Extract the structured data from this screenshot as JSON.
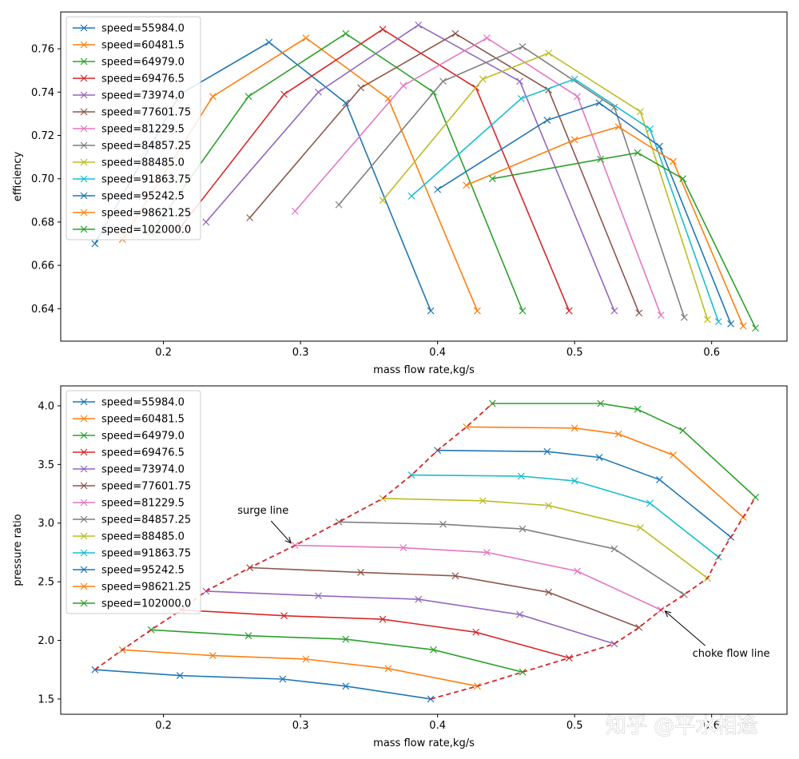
{
  "colors": [
    "#1f77b4",
    "#ff7f0e",
    "#2ca02c",
    "#d62728",
    "#9467bd",
    "#8c564b",
    "#e377c2",
    "#7f7f7f",
    "#bcbd22",
    "#17becf",
    "#1f77b4",
    "#ff7f0e",
    "#2ca02c"
  ],
  "boundary_color": "#d62728",
  "watermark": "知乎 @平水相逢",
  "chart_data": [
    {
      "type": "line",
      "xlabel": "mass flow rate,kg/s",
      "ylabel": "efficiency",
      "xlim": [
        0.125,
        0.655
      ],
      "ylim": [
        0.625,
        0.777
      ],
      "xticks": [
        0.2,
        0.3,
        0.4,
        0.5,
        0.6
      ],
      "yticks": [
        0.64,
        0.66,
        0.68,
        0.7,
        0.72,
        0.74,
        0.76
      ],
      "xtick_labels": [
        "0.2",
        "0.3",
        "0.4",
        "0.5",
        "0.6"
      ],
      "ytick_labels": [
        "0.64",
        "0.66",
        "0.68",
        "0.70",
        "0.72",
        "0.74",
        "0.76"
      ],
      "legend_loc": "upper-left",
      "series": [
        {
          "name": "speed=55984.0",
          "x": [
            0.15,
            0.212,
            0.277,
            0.333,
            0.395
          ],
          "y": [
            0.67,
            0.739,
            0.763,
            0.735,
            0.639
          ]
        },
        {
          "name": "speed=60481.5",
          "x": [
            0.17,
            0.236,
            0.304,
            0.364,
            0.429
          ],
          "y": [
            0.672,
            0.738,
            0.765,
            0.737,
            0.639
          ]
        },
        {
          "name": "speed=64979.0",
          "x": [
            0.191,
            0.262,
            0.333,
            0.397,
            0.462
          ],
          "y": [
            0.675,
            0.738,
            0.767,
            0.74,
            0.639
          ]
        },
        {
          "name": "speed=69476.5",
          "x": [
            0.213,
            0.288,
            0.36,
            0.428,
            0.496
          ],
          "y": [
            0.678,
            0.739,
            0.769,
            0.742,
            0.639
          ]
        },
        {
          "name": "speed=73974.0",
          "x": [
            0.231,
            0.313,
            0.386,
            0.46,
            0.529
          ],
          "y": [
            0.68,
            0.74,
            0.771,
            0.745,
            0.639
          ]
        },
        {
          "name": "speed=77601.75",
          "x": [
            0.263,
            0.344,
            0.413,
            0.481,
            0.547
          ],
          "y": [
            0.682,
            0.742,
            0.767,
            0.741,
            0.638
          ]
        },
        {
          "name": "speed=81229.5",
          "x": [
            0.296,
            0.375,
            0.436,
            0.502,
            0.563
          ],
          "y": [
            0.685,
            0.743,
            0.765,
            0.738,
            0.637
          ]
        },
        {
          "name": "speed=84857.25",
          "x": [
            0.328,
            0.404,
            0.462,
            0.529,
            0.58
          ],
          "y": [
            0.688,
            0.745,
            0.761,
            0.733,
            0.636
          ]
        },
        {
          "name": "speed=88485.0",
          "x": [
            0.36,
            0.433,
            0.481,
            0.548,
            0.597
          ],
          "y": [
            0.69,
            0.746,
            0.758,
            0.731,
            0.635
          ]
        },
        {
          "name": "speed=91863.75",
          "x": [
            0.381,
            0.461,
            0.5,
            0.555,
            0.605
          ],
          "y": [
            0.692,
            0.737,
            0.746,
            0.723,
            0.634
          ]
        },
        {
          "name": "speed=95242.5",
          "x": [
            0.4,
            0.48,
            0.518,
            0.562,
            0.614
          ],
          "y": [
            0.695,
            0.727,
            0.735,
            0.715,
            0.633
          ]
        },
        {
          "name": "speed=98621.25",
          "x": [
            0.421,
            0.5,
            0.532,
            0.572,
            0.623
          ],
          "y": [
            0.697,
            0.718,
            0.724,
            0.708,
            0.632
          ]
        },
        {
          "name": "speed=102000.0",
          "x": [
            0.44,
            0.519,
            0.546,
            0.579,
            0.632
          ],
          "y": [
            0.7,
            0.709,
            0.712,
            0.7,
            0.631
          ]
        }
      ]
    },
    {
      "type": "line",
      "xlabel": "mass flow rate,kg/s",
      "ylabel": "pressure ratio",
      "xlim": [
        0.125,
        0.655
      ],
      "ylim": [
        1.37,
        4.17
      ],
      "xticks": [
        0.2,
        0.3,
        0.4,
        0.5,
        0.6
      ],
      "yticks": [
        1.5,
        2.0,
        2.5,
        3.0,
        3.5,
        4.0
      ],
      "xtick_labels": [
        "0.2",
        "0.3",
        "0.4",
        "0.5",
        "0.6"
      ],
      "ytick_labels": [
        "1.5",
        "2.0",
        "2.5",
        "3.0",
        "3.5",
        "4.0"
      ],
      "legend_loc": "upper-left",
      "series": [
        {
          "name": "speed=55984.0",
          "x": [
            0.15,
            0.212,
            0.287,
            0.333,
            0.395
          ],
          "y": [
            1.75,
            1.7,
            1.67,
            1.61,
            1.5
          ]
        },
        {
          "name": "speed=60481.5",
          "x": [
            0.17,
            0.236,
            0.304,
            0.364,
            0.429
          ],
          "y": [
            1.92,
            1.87,
            1.84,
            1.76,
            1.61
          ]
        },
        {
          "name": "speed=64979.0",
          "x": [
            0.191,
            0.262,
            0.333,
            0.397,
            0.462
          ],
          "y": [
            2.09,
            2.04,
            2.01,
            1.92,
            1.73
          ]
        },
        {
          "name": "speed=69476.5",
          "x": [
            0.213,
            0.288,
            0.36,
            0.428,
            0.496
          ],
          "y": [
            2.26,
            2.21,
            2.18,
            2.07,
            1.85
          ]
        },
        {
          "name": "speed=73974.0",
          "x": [
            0.231,
            0.313,
            0.386,
            0.46,
            0.529
          ],
          "y": [
            2.42,
            2.38,
            2.35,
            2.22,
            1.97
          ]
        },
        {
          "name": "speed=77601.75",
          "x": [
            0.263,
            0.344,
            0.413,
            0.481,
            0.547
          ],
          "y": [
            2.62,
            2.58,
            2.55,
            2.41,
            2.11
          ]
        },
        {
          "name": "speed=81229.5",
          "x": [
            0.296,
            0.375,
            0.436,
            0.502,
            0.563
          ],
          "y": [
            2.81,
            2.79,
            2.75,
            2.59,
            2.26
          ]
        },
        {
          "name": "speed=84857.25",
          "x": [
            0.328,
            0.404,
            0.462,
            0.529,
            0.58
          ],
          "y": [
            3.01,
            2.99,
            2.95,
            2.78,
            2.39
          ]
        },
        {
          "name": "speed=88485.0",
          "x": [
            0.36,
            0.433,
            0.481,
            0.548,
            0.597
          ],
          "y": [
            3.21,
            3.19,
            3.15,
            2.96,
            2.53
          ]
        },
        {
          "name": "speed=91863.75",
          "x": [
            0.381,
            0.461,
            0.5,
            0.555,
            0.605
          ],
          "y": [
            3.41,
            3.4,
            3.36,
            3.17,
            2.71
          ]
        },
        {
          "name": "speed=95242.5",
          "x": [
            0.4,
            0.48,
            0.518,
            0.562,
            0.614
          ],
          "y": [
            3.62,
            3.61,
            3.56,
            3.37,
            2.88
          ]
        },
        {
          "name": "speed=98621.25",
          "x": [
            0.421,
            0.5,
            0.532,
            0.572,
            0.623
          ],
          "y": [
            3.82,
            3.81,
            3.76,
            3.58,
            3.05
          ]
        },
        {
          "name": "speed=102000.0",
          "x": [
            0.44,
            0.519,
            0.546,
            0.579,
            0.632
          ],
          "y": [
            4.02,
            4.02,
            3.97,
            3.79,
            3.22
          ]
        }
      ],
      "surge_line": {
        "x": [
          0.15,
          0.17,
          0.191,
          0.213,
          0.231,
          0.263,
          0.296,
          0.328,
          0.36,
          0.381,
          0.4,
          0.421,
          0.44
        ],
        "y": [
          1.75,
          1.92,
          2.09,
          2.26,
          2.42,
          2.62,
          2.81,
          3.01,
          3.21,
          3.41,
          3.62,
          3.82,
          4.02
        ]
      },
      "choke_line": {
        "x": [
          0.395,
          0.429,
          0.462,
          0.496,
          0.529,
          0.547,
          0.563,
          0.58,
          0.597,
          0.605,
          0.614,
          0.623,
          0.632
        ],
        "y": [
          1.5,
          1.61,
          1.73,
          1.85,
          1.97,
          2.11,
          2.26,
          2.39,
          2.53,
          2.71,
          2.88,
          3.05,
          3.22
        ]
      },
      "annotations": [
        {
          "text": "surge line",
          "text_x": 0.254,
          "text_y": 3.08,
          "arrow_x": 0.293,
          "arrow_y": 2.83
        },
        {
          "text": "choke flow line",
          "text_x": 0.586,
          "text_y": 1.86,
          "arrow_x": 0.566,
          "arrow_y": 2.25
        }
      ]
    }
  ]
}
